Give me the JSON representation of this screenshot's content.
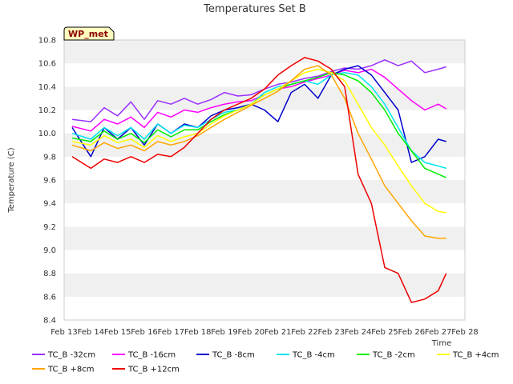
{
  "chart_data": {
    "type": "line",
    "title": "Temperatures Set B",
    "xlabel": "Time",
    "ylabel": "Temperature (C)",
    "badge": "WP_met",
    "xlim": [
      0,
      15
    ],
    "ylim": [
      8.4,
      10.8
    ],
    "x_tick_labels": [
      "Feb 13",
      "Feb 14",
      "Feb 15",
      "Feb 16",
      "Feb 17",
      "Feb 18",
      "Feb 19",
      "Feb 20",
      "Feb 21",
      "Feb 22",
      "Feb 23",
      "Feb 24",
      "Feb 25",
      "Feb 26",
      "Feb 27",
      "Feb 28"
    ],
    "y_ticks": [
      8.4,
      8.6,
      8.8,
      9.0,
      9.2,
      9.4,
      9.6,
      9.8,
      10.0,
      10.2,
      10.4,
      10.6,
      10.8
    ],
    "y_tick_labels": [
      "8.4",
      "8.6",
      "8.8",
      "9.0",
      "9.2",
      "9.4",
      "9.6",
      "9.8",
      "10.0",
      "10.2",
      "10.4",
      "10.6",
      "10.8"
    ],
    "grid": "horizontal bands",
    "legend_position": "bottom",
    "x": [
      0.3,
      1.0,
      1.5,
      2.0,
      2.5,
      3.0,
      3.5,
      4.0,
      4.5,
      5.0,
      5.5,
      6.0,
      6.5,
      7.0,
      7.5,
      8.0,
      8.5,
      9.0,
      9.5,
      10.0,
      10.5,
      11.0,
      11.5,
      12.0,
      12.5,
      13.0,
      13.5,
      14.0,
      14.3
    ],
    "series": [
      {
        "name": "TC_B -32cm",
        "color": "#9b30ff",
        "values": [
          10.12,
          10.1,
          10.22,
          10.15,
          10.27,
          10.12,
          10.28,
          10.25,
          10.3,
          10.25,
          10.29,
          10.35,
          10.32,
          10.33,
          10.38,
          10.42,
          10.44,
          10.47,
          10.49,
          10.53,
          10.56,
          10.55,
          10.58,
          10.63,
          10.58,
          10.62,
          10.52,
          10.55,
          10.57
        ]
      },
      {
        "name": "TC_B -16cm",
        "color": "#ff00ff",
        "values": [
          10.06,
          10.02,
          10.12,
          10.08,
          10.14,
          10.05,
          10.18,
          10.14,
          10.2,
          10.18,
          10.22,
          10.25,
          10.27,
          10.28,
          10.33,
          10.38,
          10.4,
          10.44,
          10.47,
          10.5,
          10.54,
          10.52,
          10.55,
          10.48,
          10.38,
          10.28,
          10.2,
          10.25,
          10.21
        ]
      },
      {
        "name": "TC_B -8cm",
        "color": "#0000cd",
        "values": [
          10.05,
          9.8,
          10.05,
          9.95,
          10.05,
          9.9,
          10.08,
          10.0,
          10.08,
          10.05,
          10.15,
          10.2,
          10.22,
          10.25,
          10.2,
          10.1,
          10.35,
          10.42,
          10.3,
          10.5,
          10.55,
          10.58,
          10.5,
          10.35,
          10.2,
          9.75,
          9.8,
          9.95,
          9.93
        ]
      },
      {
        "name": "TC_B -4cm",
        "color": "#00e5ee",
        "values": [
          10.0,
          9.95,
          10.05,
          9.98,
          10.05,
          9.95,
          10.08,
          10.0,
          10.07,
          10.05,
          10.12,
          10.18,
          10.2,
          10.25,
          10.35,
          10.4,
          10.42,
          10.45,
          10.42,
          10.5,
          10.52,
          10.5,
          10.4,
          10.25,
          10.05,
          9.85,
          9.75,
          9.72,
          9.7
        ]
      },
      {
        "name": "TC_B -2cm",
        "color": "#00ee00",
        "values": [
          9.96,
          9.93,
          10.02,
          9.95,
          10.0,
          9.92,
          10.03,
          9.97,
          10.03,
          10.03,
          10.1,
          10.16,
          10.2,
          10.25,
          10.33,
          10.38,
          10.42,
          10.45,
          10.48,
          10.52,
          10.5,
          10.45,
          10.35,
          10.2,
          10.0,
          9.85,
          9.7,
          9.65,
          9.62
        ]
      },
      {
        "name": "TC_B +4cm",
        "color": "#ffff00",
        "values": [
          9.93,
          9.9,
          9.98,
          9.92,
          9.95,
          9.88,
          9.98,
          9.93,
          9.97,
          10.0,
          10.08,
          10.15,
          10.2,
          10.25,
          10.33,
          10.38,
          10.45,
          10.52,
          10.55,
          10.52,
          10.45,
          10.25,
          10.05,
          9.9,
          9.72,
          9.55,
          9.4,
          9.33,
          9.32
        ]
      },
      {
        "name": "TC_B +8cm",
        "color": "#ffa500",
        "values": [
          9.9,
          9.85,
          9.92,
          9.87,
          9.9,
          9.85,
          9.93,
          9.9,
          9.93,
          9.98,
          10.05,
          10.12,
          10.18,
          10.24,
          10.3,
          10.36,
          10.45,
          10.55,
          10.58,
          10.5,
          10.3,
          10.0,
          9.78,
          9.55,
          9.4,
          9.25,
          9.12,
          9.1,
          9.1
        ]
      },
      {
        "name": "TC_B +12cm",
        "color": "#ee0000",
        "values": [
          9.8,
          9.7,
          9.78,
          9.75,
          9.8,
          9.75,
          9.82,
          9.8,
          9.88,
          10.0,
          10.12,
          10.2,
          10.25,
          10.3,
          10.38,
          10.5,
          10.58,
          10.65,
          10.62,
          10.55,
          10.4,
          9.65,
          9.4,
          8.85,
          8.8,
          8.55,
          8.58,
          8.65,
          8.8
        ]
      }
    ]
  }
}
